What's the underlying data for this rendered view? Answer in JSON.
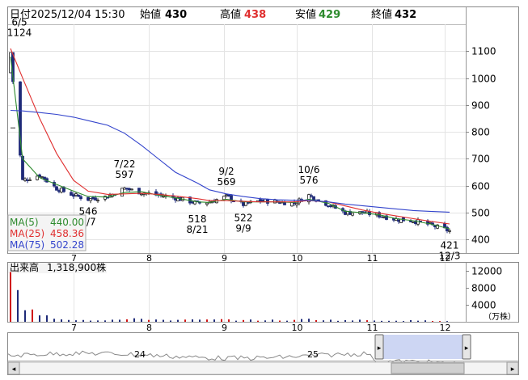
{
  "header": {
    "date_label": "日付",
    "date_value": "2025/12/04 15:30",
    "open_label": "始値",
    "open_value": "430",
    "high_label": "高値",
    "high_value": "438",
    "low_label": "安値",
    "low_value": "429",
    "close_label": "終値",
    "close_value": "432"
  },
  "colors": {
    "up": "#222222",
    "down": "#1e2a78",
    "ma5": "#2e8b2e",
    "ma25": "#e03030",
    "ma75": "#3344cc",
    "high_value": "#e03030",
    "low_value": "#2e8b2e",
    "volume": "#1e2a78",
    "volume_spike": "#d01010",
    "navigator_fill": "#b8c4ee"
  },
  "chart_data": [
    {
      "type": "candlestick",
      "ylim": [
        350,
        1200
      ],
      "y_ticks": [
        400,
        500,
        600,
        700,
        800,
        900,
        1000,
        1100
      ],
      "x_month_labels": [
        "7",
        "8",
        "9",
        "10",
        "11",
        "12"
      ],
      "grid": true,
      "x": [
        "2025-06-05",
        "2025-06-10",
        "2025-06-17",
        "2025-06-24",
        "2025-07-01",
        "2025-07-07",
        "2025-07-15",
        "2025-07-22",
        "2025-07-29",
        "2025-08-05",
        "2025-08-12",
        "2025-08-21",
        "2025-08-26",
        "2025-09-02",
        "2025-09-09",
        "2025-09-16",
        "2025-09-23",
        "2025-09-30",
        "2025-10-06",
        "2025-10-14",
        "2025-10-21",
        "2025-10-28",
        "2025-11-04",
        "2025-11-11",
        "2025-11-18",
        "2025-11-25",
        "2025-12-03"
      ],
      "close": [
        1080,
        620,
        640,
        590,
        565,
        550,
        560,
        590,
        575,
        565,
        555,
        535,
        540,
        560,
        530,
        545,
        540,
        535,
        565,
        530,
        500,
        500,
        490,
        475,
        470,
        455,
        432
      ],
      "annotations": [
        {
          "label": "6/5",
          "value": "1124",
          "kind": "high"
        },
        {
          "label": "7/7",
          "value": "546",
          "kind": "low"
        },
        {
          "label": "7/22",
          "value": "597",
          "kind": "high"
        },
        {
          "label": "8/21",
          "value": "518",
          "kind": "low"
        },
        {
          "label": "9/2",
          "value": "569",
          "kind": "high"
        },
        {
          "label": "9/9",
          "value": "522",
          "kind": "low"
        },
        {
          "label": "10/6",
          "value": "576",
          "kind": "high"
        },
        {
          "label": "12/3",
          "value": "421",
          "kind": "low"
        }
      ],
      "series": [
        {
          "name": "MA(5)",
          "value": "440.00",
          "values": [
            1080,
            700,
            630,
            605,
            580,
            560,
            558,
            575,
            578,
            565,
            555,
            540,
            538,
            550,
            540,
            540,
            540,
            538,
            550,
            535,
            505,
            500,
            492,
            478,
            470,
            458,
            440
          ]
        },
        {
          "name": "MA(25)",
          "value": "458.36",
          "values": [
            1110,
            1000,
            850,
            720,
            620,
            580,
            568,
            570,
            572,
            568,
            562,
            552,
            545,
            545,
            542,
            540,
            540,
            540,
            545,
            540,
            525,
            510,
            498,
            488,
            478,
            468,
            458
          ]
        },
        {
          "name": "MA(75)",
          "value": "502.28",
          "values": [
            880,
            878,
            872,
            865,
            855,
            842,
            825,
            795,
            750,
            700,
            650,
            610,
            585,
            570,
            560,
            552,
            548,
            546,
            546,
            540,
            532,
            526,
            520,
            514,
            508,
            505,
            502
          ]
        }
      ]
    },
    {
      "type": "bar",
      "title": "出来高",
      "current_value": "1,318,900株",
      "unit": "（万株）",
      "ylim": [
        0,
        14000
      ],
      "y_ticks": [
        4000,
        8000,
        12000
      ],
      "x_month_labels": [
        "7",
        "8",
        "9",
        "10",
        "11",
        "12"
      ],
      "values": [
        11800,
        2600,
        2200,
        800,
        500,
        400,
        450,
        500,
        700,
        500,
        400,
        450,
        450,
        500,
        380,
        400,
        380,
        350,
        700,
        400,
        350,
        380,
        320,
        300,
        280,
        260,
        250
      ]
    }
  ],
  "navigator": {
    "labels": [
      "24",
      "25"
    ]
  }
}
